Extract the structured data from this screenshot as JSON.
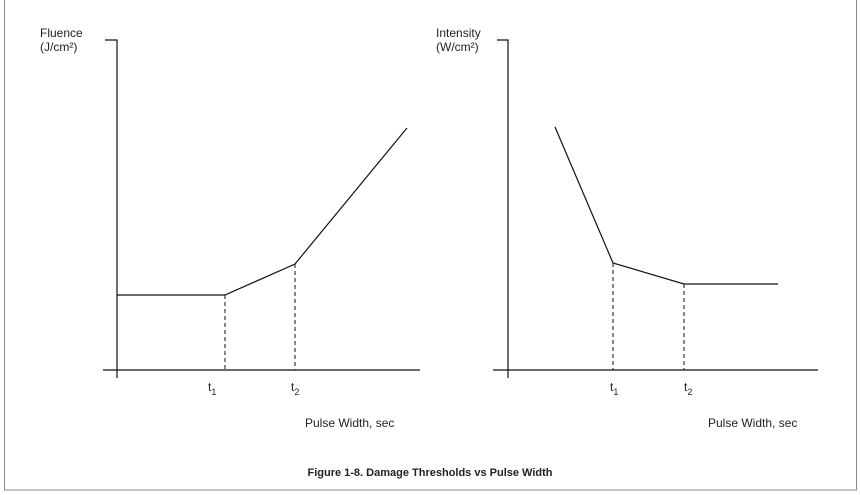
{
  "left_plot": {
    "y_label": "Fluence",
    "y_unit": "(J/cm²)",
    "x_label": "Pulse Width, sec",
    "markers": [
      {
        "symbol": "t",
        "subscript": "1"
      },
      {
        "symbol": "t",
        "subscript": "2"
      }
    ]
  },
  "right_plot": {
    "y_label": "Intensity",
    "y_unit": "(W/cm²)",
    "x_label": "Pulse Width, sec",
    "markers": [
      {
        "symbol": "t",
        "subscript": "1"
      },
      {
        "symbol": "t",
        "subscript": "2"
      }
    ]
  },
  "caption": "Figure 1-8.  Damage Thresholds vs Pulse Width"
}
